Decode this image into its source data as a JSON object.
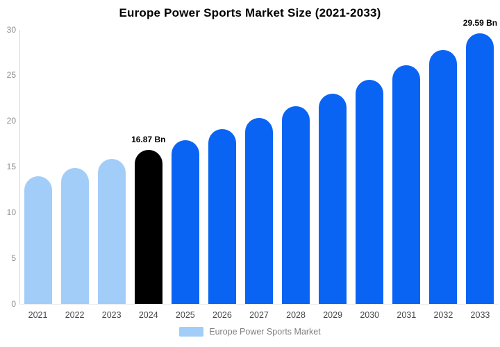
{
  "title": "Europe Power Sports Market Size (2021-2033)",
  "colors": {
    "light_blue": "#A3CDF9",
    "blue": "#0A64F3",
    "highlight_black": "#000000",
    "axis_line": "#D6D6D6",
    "tick_text": "#8C8C8C",
    "year_text": "#474747",
    "legend_text": "#7D7D7D",
    "background": "#FFFFFF"
  },
  "chart_data": {
    "type": "bar",
    "title": "Europe Power Sports Market Size (2021-2033)",
    "xlabel": "",
    "ylabel": "",
    "unit": "Bn",
    "categories": [
      "2021",
      "2022",
      "2023",
      "2024",
      "2025",
      "2026",
      "2027",
      "2028",
      "2029",
      "2030",
      "2031",
      "2032",
      "2033"
    ],
    "values": [
      13.99,
      14.89,
      15.85,
      16.87,
      17.96,
      19.11,
      20.35,
      21.66,
      23.05,
      24.54,
      26.12,
      27.8,
      29.59
    ],
    "bar_colors": [
      "#A3CDF9",
      "#A3CDF9",
      "#A3CDF9",
      "#000000",
      "#0A64F3",
      "#0A64F3",
      "#0A64F3",
      "#0A64F3",
      "#0A64F3",
      "#0A64F3",
      "#0A64F3",
      "#0A64F3",
      "#0A64F3"
    ],
    "annotations": [
      {
        "category": "2024",
        "text": "16.87 Bn"
      },
      {
        "category": "2033",
        "text": "29.59 Bn"
      }
    ],
    "ylim": [
      0,
      30
    ],
    "yticks": [
      0,
      5,
      10,
      15,
      20,
      25,
      30
    ],
    "grid": false,
    "legend_position": "bottom",
    "legend": [
      {
        "label": "Europe Power Sports Market",
        "color": "#A3CDF9"
      }
    ]
  }
}
